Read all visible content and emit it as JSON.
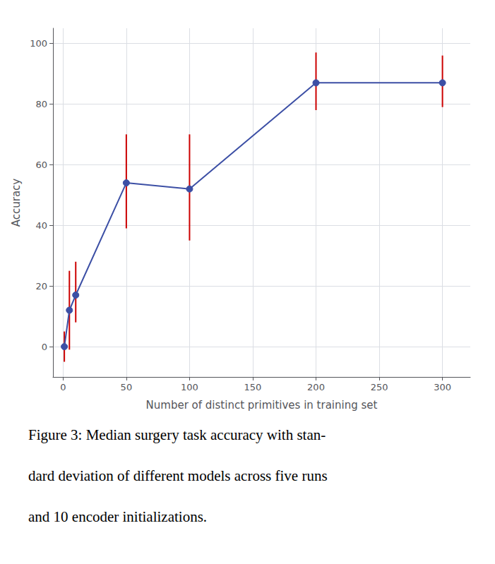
{
  "chart_data": {
    "type": "line",
    "x": [
      1,
      5,
      10,
      50,
      100,
      200,
      300
    ],
    "values": [
      0,
      12,
      17,
      54,
      52,
      87,
      87
    ],
    "error": {
      "lower": [
        5,
        13,
        9,
        15,
        17,
        9,
        8
      ],
      "upper": [
        5,
        13,
        11,
        16,
        18,
        10,
        9
      ],
      "color": "#cc0000"
    },
    "color": "#3c4fa5",
    "marker": "circle",
    "xlabel": "Number of distinct primitives in training set",
    "ylabel": "Accuracy",
    "xlim": [
      -8,
      322
    ],
    "ylim": [
      -10,
      105
    ],
    "xticks": [
      0,
      50,
      100,
      150,
      200,
      250,
      300
    ],
    "yticks": [
      0,
      20,
      40,
      60,
      80,
      100
    ],
    "grid": true,
    "annotations": [
      "Figure 3: Median surgery task accuracy with stan-",
      "dard deviation of different models across five runs",
      "and 10 encoder initializations."
    ]
  }
}
